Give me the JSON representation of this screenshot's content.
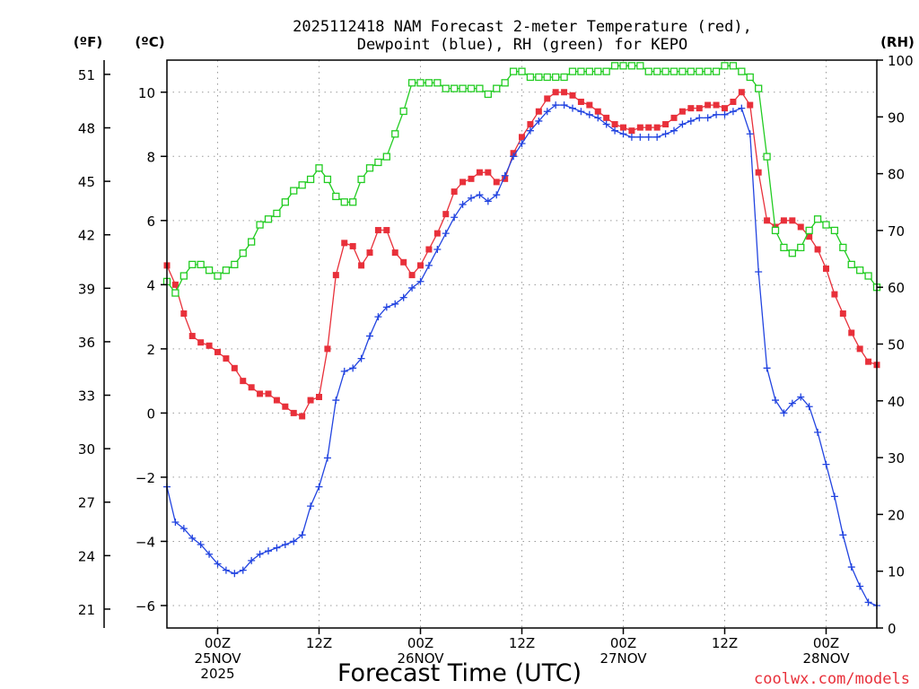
{
  "chart_data": {
    "type": "line",
    "title": "2025112418 NAM Forecast 2-meter Temperature (red),",
    "subtitle": "Dewpoint (blue), RH (green) for KEPO",
    "xlabel": "Forecast Time (UTC)",
    "credit": "coolwx.com/models",
    "units": {
      "left_f": "(ºF)",
      "left_c": "(ºC)",
      "right_rh": "(RH)"
    },
    "x_unit": "forecast hour from 2025-11-24 18Z",
    "xlim": [
      0,
      84
    ],
    "celsius_axis": {
      "ylim": [
        -6.7,
        11
      ],
      "ticks": [
        -6,
        -4,
        -2,
        0,
        2,
        4,
        6,
        8,
        10
      ]
    },
    "fahrenheit_axis": {
      "ticks": [
        21,
        24,
        27,
        30,
        33,
        36,
        39,
        42,
        45,
        48,
        51
      ]
    },
    "rh_axis": {
      "ylim": [
        0,
        100
      ],
      "ticks": [
        0,
        10,
        20,
        30,
        40,
        50,
        60,
        70,
        80,
        90,
        100
      ]
    },
    "x_ticks": [
      {
        "x": 6,
        "lines": [
          "00Z",
          "25NOV",
          "2025"
        ]
      },
      {
        "x": 18,
        "lines": [
          "12Z"
        ]
      },
      {
        "x": 30,
        "lines": [
          "00Z",
          "26NOV"
        ]
      },
      {
        "x": 42,
        "lines": [
          "12Z"
        ]
      },
      {
        "x": 54,
        "lines": [
          "00Z",
          "27NOV"
        ]
      },
      {
        "x": 66,
        "lines": [
          "12Z"
        ]
      },
      {
        "x": 78,
        "lines": [
          "00Z",
          "28NOV"
        ]
      }
    ],
    "series": [
      {
        "name": "Temperature",
        "color": "#e8303a",
        "marker": "square-filled",
        "axis": "celsius",
        "values": [
          4.6,
          4.0,
          3.1,
          2.4,
          2.2,
          2.1,
          1.9,
          1.7,
          1.4,
          1.0,
          0.8,
          0.6,
          0.6,
          0.4,
          0.2,
          0.0,
          -0.1,
          0.4,
          0.5,
          2.0,
          4.3,
          5.3,
          5.2,
          4.6,
          5.0,
          5.7,
          5.7,
          5.0,
          4.7,
          4.3,
          4.6,
          5.1,
          5.6,
          6.2,
          6.9,
          7.2,
          7.3,
          7.5,
          7.5,
          7.2,
          7.3,
          8.1,
          8.6,
          9.0,
          9.4,
          9.8,
          10.0,
          10.0,
          9.9,
          9.7,
          9.6,
          9.4,
          9.2,
          9.0,
          8.9,
          8.8,
          8.9,
          8.9,
          8.9,
          9.0,
          9.2,
          9.4,
          9.5,
          9.5,
          9.6,
          9.6,
          9.5,
          9.7,
          10.0,
          9.6,
          7.5,
          6.0,
          5.8,
          6.0,
          6.0,
          5.8,
          5.5,
          5.1,
          4.5,
          3.7,
          3.1,
          2.5,
          2.0,
          1.6,
          1.5
        ]
      },
      {
        "name": "Dewpoint",
        "color": "#2244e0",
        "marker": "plus",
        "axis": "celsius",
        "values": [
          -2.3,
          -3.4,
          -3.6,
          -3.9,
          -4.1,
          -4.4,
          -4.7,
          -4.9,
          -5.0,
          -4.9,
          -4.6,
          -4.4,
          -4.3,
          -4.2,
          -4.1,
          -4.0,
          -3.8,
          -2.9,
          -2.3,
          -1.4,
          0.4,
          1.3,
          1.4,
          1.7,
          2.4,
          3.0,
          3.3,
          3.4,
          3.6,
          3.9,
          4.1,
          4.6,
          5.1,
          5.6,
          6.1,
          6.5,
          6.7,
          6.8,
          6.6,
          6.8,
          7.4,
          8.0,
          8.4,
          8.8,
          9.1,
          9.4,
          9.6,
          9.6,
          9.5,
          9.4,
          9.3,
          9.2,
          9.0,
          8.8,
          8.7,
          8.6,
          8.6,
          8.6,
          8.6,
          8.7,
          8.8,
          9.0,
          9.1,
          9.2,
          9.2,
          9.3,
          9.3,
          9.4,
          9.5,
          8.7,
          4.4,
          1.4,
          0.4,
          0.0,
          0.3,
          0.5,
          0.2,
          -0.6,
          -1.6,
          -2.6,
          -3.8,
          -4.8,
          -5.4,
          -5.9,
          -6.0
        ]
      },
      {
        "name": "RH",
        "color": "#22cc22",
        "marker": "square-open",
        "axis": "rh",
        "values": [
          61,
          59,
          62,
          64,
          64,
          63,
          62,
          63,
          64,
          66,
          68,
          71,
          72,
          73,
          75,
          77,
          78,
          79,
          81,
          79,
          76,
          75,
          75,
          79,
          81,
          82,
          83,
          87,
          91,
          96,
          96,
          96,
          96,
          95,
          95,
          95,
          95,
          95,
          94,
          95,
          96,
          98,
          98,
          97,
          97,
          97,
          97,
          97,
          98,
          98,
          98,
          98,
          98,
          99,
          99,
          99,
          99,
          98,
          98,
          98,
          98,
          98,
          98,
          98,
          98,
          98,
          99,
          99,
          98,
          97,
          95,
          83,
          70,
          67,
          66,
          67,
          70,
          72,
          71,
          70,
          67,
          64,
          63,
          62,
          60
        ]
      }
    ]
  }
}
